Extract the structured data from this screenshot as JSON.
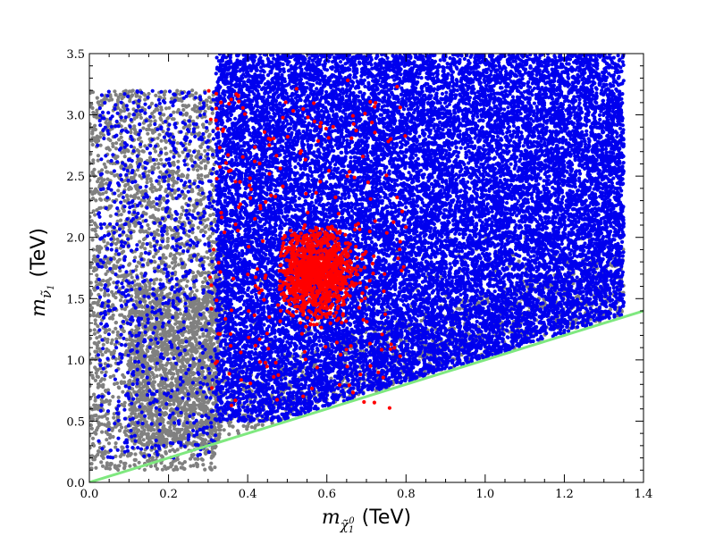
{
  "chart_data": {
    "type": "scatter",
    "title": "",
    "xlabel": {
      "symbol": "m",
      "subscript": "χ̃",
      "subsub": "1",
      "supsup": "0",
      "unit": "(TeV)"
    },
    "ylabel": {
      "symbol": "m",
      "subscript": "ν̃",
      "subsub": "1",
      "unit": "(TeV)"
    },
    "xlim": [
      0.0,
      1.4
    ],
    "ylim": [
      0.0,
      3.5
    ],
    "xticks": [
      "0.0",
      "0.2",
      "0.4",
      "0.6",
      "0.8",
      "1.0",
      "1.2",
      "1.4"
    ],
    "yticks": [
      "0.0",
      "0.5",
      "1.0",
      "1.5",
      "2.0",
      "2.5",
      "3.0",
      "3.5"
    ],
    "grid": false,
    "legend": "none",
    "colors": {
      "gray_points": "#808080",
      "blue_points": "#0000ee",
      "red_points": "#ff0000",
      "reference_line": "#7fe87f"
    },
    "reference_line": {
      "x": [
        0.0,
        1.4
      ],
      "y": [
        0.0,
        1.4
      ]
    },
    "series": [
      {
        "color_key": "gray_points",
        "regions": [
          {
            "x": [
              0.0,
              0.32
            ],
            "y": [
              0.1,
              3.2
            ],
            "count": 2600
          },
          {
            "x": [
              0.1,
              0.33
            ],
            "y": [
              0.3,
              1.6
            ],
            "count": 1400
          },
          {
            "x": [
              0.3,
              1.35
            ],
            "y": [
              0.3,
              2.0
            ],
            "count": 1400,
            "above_line": true,
            "edge_band": true
          }
        ]
      },
      {
        "color_key": "blue_points",
        "regions": [
          {
            "x": [
              0.32,
              1.35
            ],
            "y": [
              0.5,
              3.5
            ],
            "count": 20000,
            "above_line": true
          },
          {
            "x": [
              0.02,
              0.32
            ],
            "y": [
              0.2,
              3.2
            ],
            "count": 900
          }
        ]
      },
      {
        "color_key": "red_points",
        "regions": [
          {
            "x": [
              0.48,
              0.75
            ],
            "y": [
              1.25,
              2.1
            ],
            "count": 1100,
            "cluster": {
              "cx": 0.57,
              "cy": 1.72,
              "sx": 0.05,
              "sy": 0.18
            }
          },
          {
            "x": [
              0.3,
              0.8
            ],
            "y": [
              0.6,
              3.3
            ],
            "count": 240
          }
        ]
      }
    ]
  }
}
